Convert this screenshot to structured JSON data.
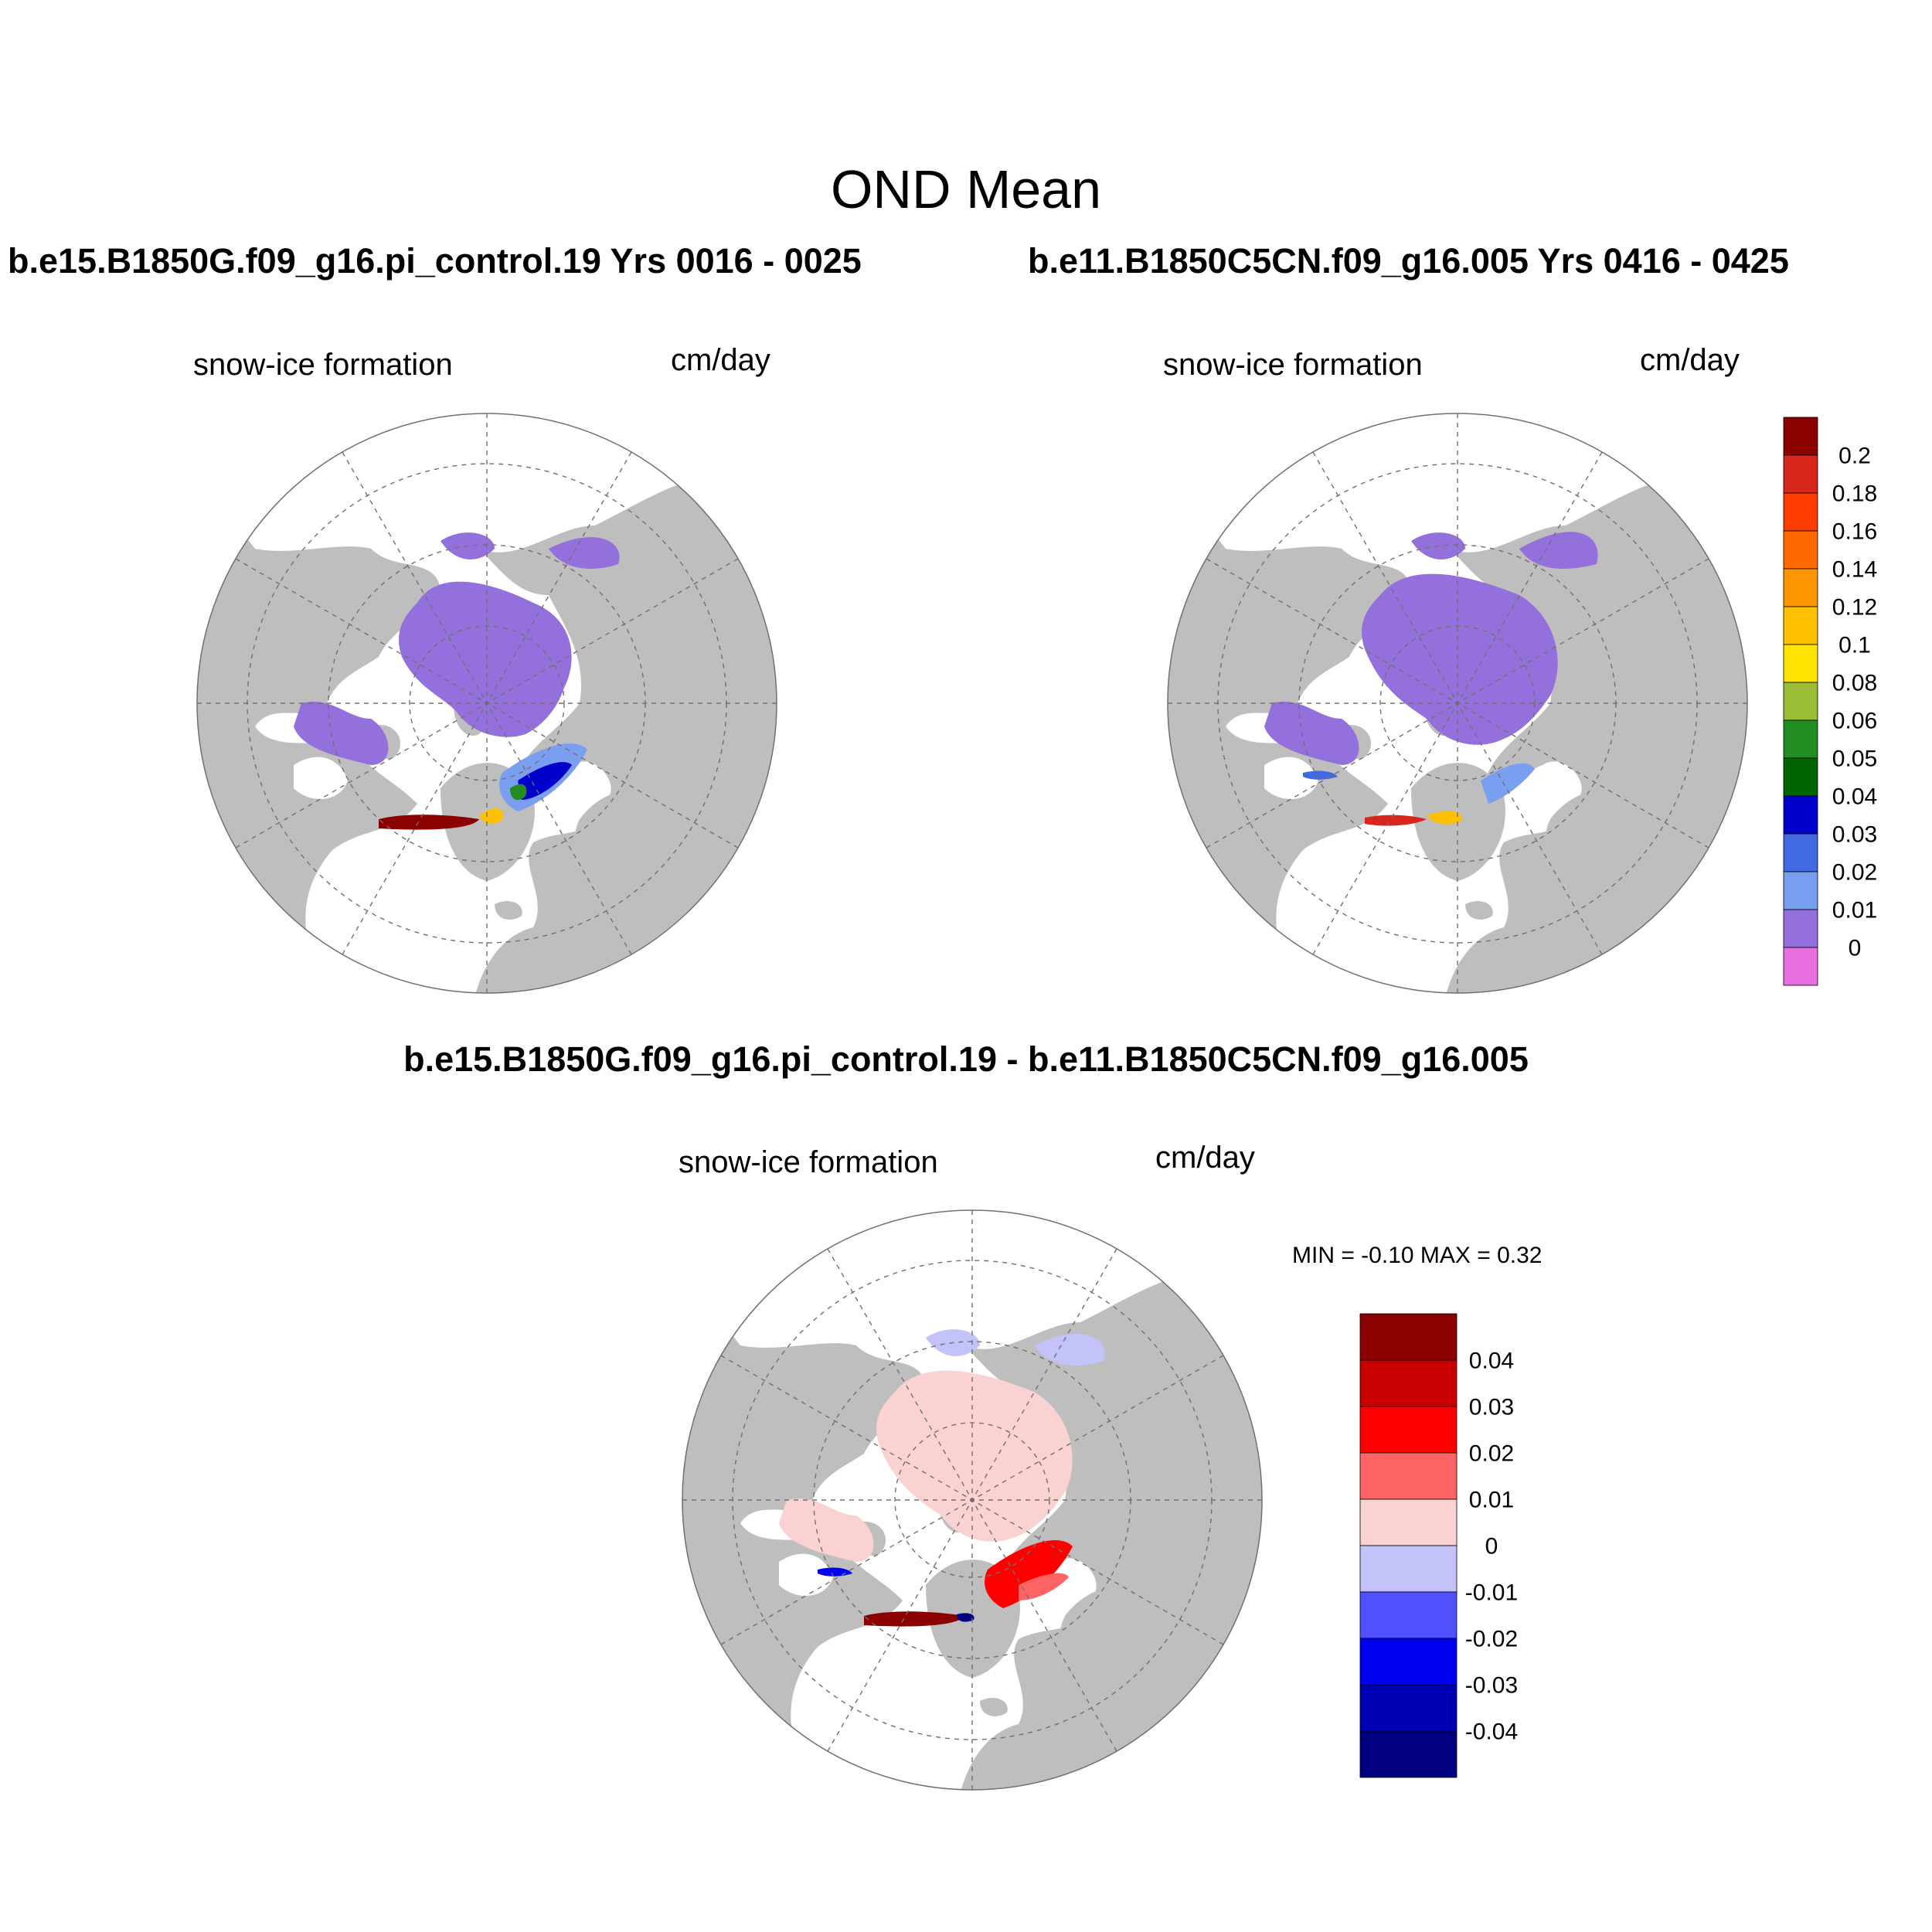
{
  "main_title": "OND Mean",
  "panels": [
    {
      "case_title": "b.e15.B1850G.f09_g16.pi_control.19  Yrs 0016 - 0025",
      "variable": "snow-ice formation",
      "units": "cm/day"
    },
    {
      "case_title": "b.e11.B1850C5CN.f09_g16.005  Yrs 0416 - 0425",
      "variable": "snow-ice formation",
      "units": "cm/day"
    }
  ],
  "diff_panel": {
    "title": "b.e15.B1850G.f09_g16.pi_control.19 - b.e11.B1850C5CN.f09_g16.005",
    "variable": "snow-ice formation",
    "units": "cm/day",
    "min_max": "MIN =  -0.10 MAX =   0.32"
  },
  "map": {
    "projection": "north polar stereographic",
    "land_color": "#bebebe",
    "ocean_color": "#ffffff",
    "grid_style": "dashed"
  },
  "colorbar_top": {
    "labels": [
      "0.2",
      "0.18",
      "0.16",
      "0.14",
      "0.12",
      "0.1",
      "0.08",
      "0.06",
      "0.05",
      "0.04",
      "0.03",
      "0.02",
      "0.01",
      "0"
    ],
    "colors": [
      "#8b0000",
      "#d7261b",
      "#ff3d00",
      "#ff6a00",
      "#ff9500",
      "#ffc000",
      "#ffe500",
      "#9abd35",
      "#228b22",
      "#006400",
      "#0000cd",
      "#4169e1",
      "#7a9ef0",
      "#9370db",
      "#e96ee0"
    ]
  },
  "colorbar_diff": {
    "labels": [
      "0.04",
      "0.03",
      "0.02",
      "0.01",
      "0",
      "-0.01",
      "-0.02",
      "-0.03",
      "-0.04"
    ],
    "colors": [
      "#8b0000",
      "#c80000",
      "#ff0000",
      "#ff6464",
      "#fad2d2",
      "#c3c3fa",
      "#5050ff",
      "#0000f0",
      "#0000b4",
      "#000080"
    ]
  }
}
